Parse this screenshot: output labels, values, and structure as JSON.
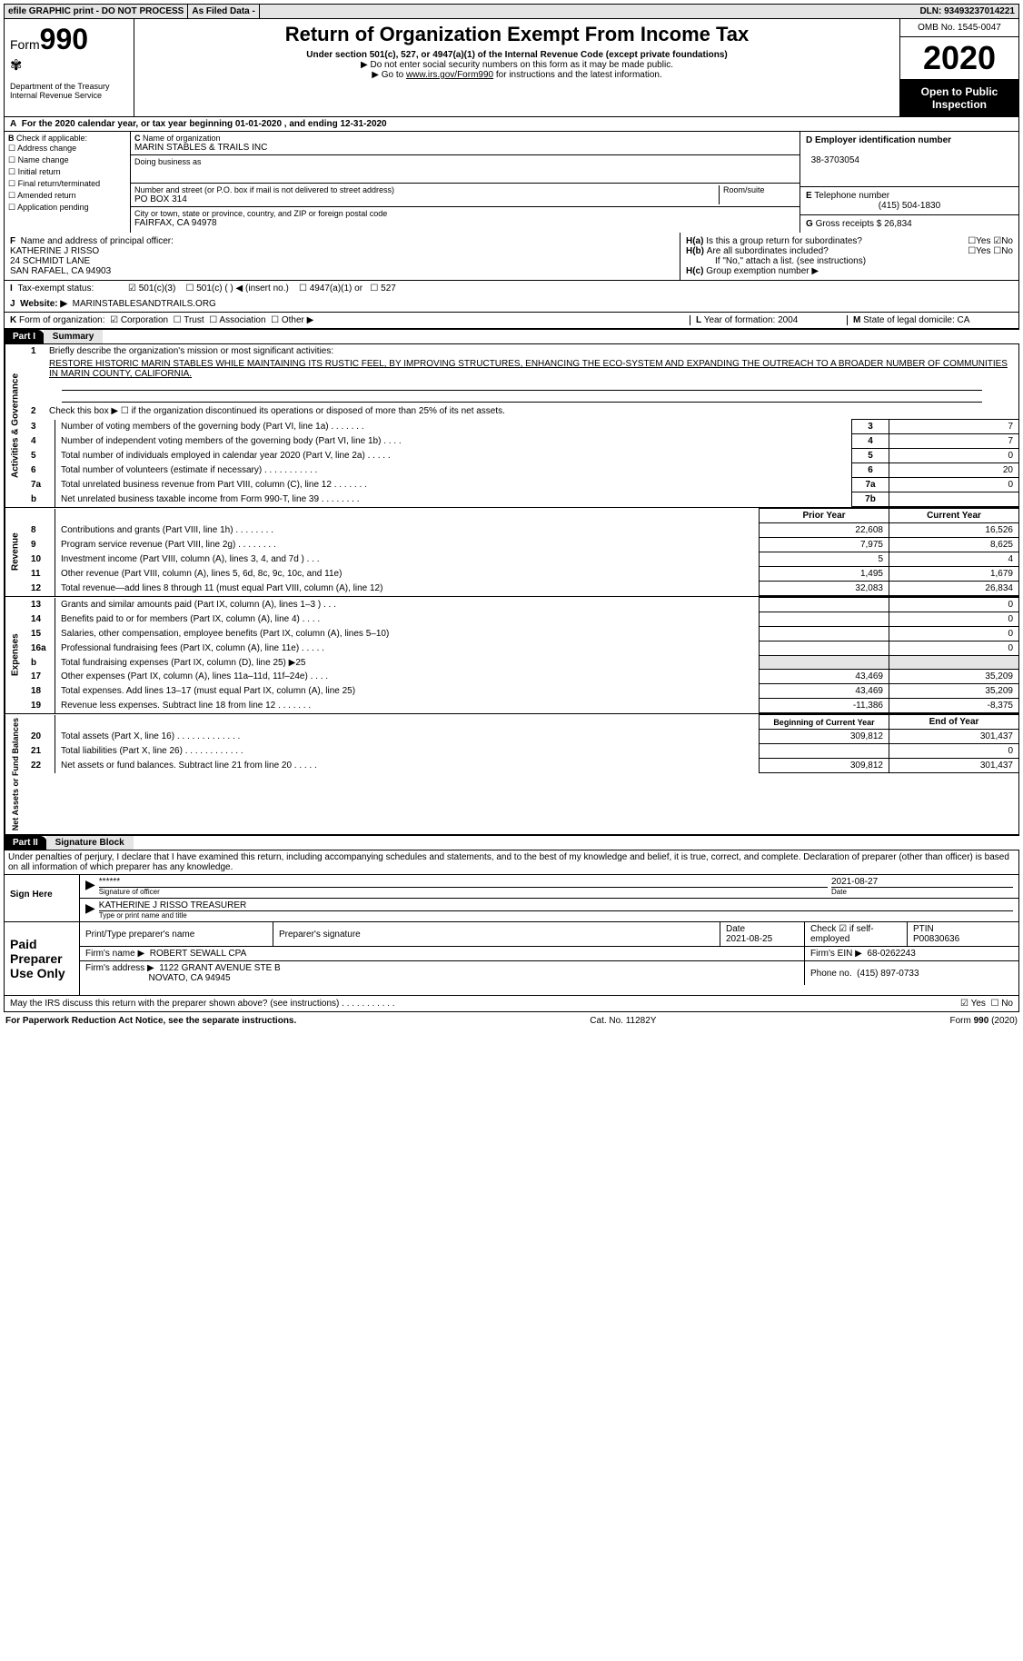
{
  "top": {
    "efile": "efile GRAPHIC print - DO NOT PROCESS",
    "asfiled": "As Filed Data -",
    "dln_label": "DLN:",
    "dln": "93493237014221"
  },
  "header": {
    "form_prefix": "Form",
    "form_num": "990",
    "dept": "Department of the Treasury\nInternal Revenue Service",
    "title": "Return of Organization Exempt From Income Tax",
    "sub": "Under section 501(c), 527, or 4947(a)(1) of the Internal Revenue Code (except private foundations)",
    "line2": "▶ Do not enter social security numbers on this form as it may be made public.",
    "line3_pre": "▶ Go to ",
    "line3_link": "www.irs.gov/Form990",
    "line3_post": " for instructions and the latest information.",
    "omb": "OMB No. 1545-0047",
    "year": "2020",
    "open": "Open to Public Inspection"
  },
  "rowA": "For the 2020 calendar year, or tax year beginning 01-01-2020   , and ending 12-31-2020",
  "B": {
    "label": "Check if applicable:",
    "items": [
      "Address change",
      "Name change",
      "Initial return",
      "Final return/terminated",
      "Amended return",
      "Application pending"
    ]
  },
  "C": {
    "name_lbl": "Name of organization",
    "name": "MARIN STABLES & TRAILS INC",
    "dba_lbl": "Doing business as",
    "addr_lbl": "Number and street (or P.O. box if mail is not delivered to street address)",
    "addr": "PO BOX 314",
    "room_lbl": "Room/suite",
    "city_lbl": "City or town, state or province, country, and ZIP or foreign postal code",
    "city": "FAIRFAX, CA  94978"
  },
  "D": {
    "lbl": "Employer identification number",
    "val": "38-3703054"
  },
  "E": {
    "lbl": "Telephone number",
    "val": "(415) 504-1830"
  },
  "G": {
    "lbl": "Gross receipts $",
    "val": "26,834"
  },
  "F": {
    "lbl": "Name and address of principal officer:",
    "l1": "KATHERINE J RISSO",
    "l2": "24 SCHMIDT LANE",
    "l3": "SAN RAFAEL, CA  94903"
  },
  "H": {
    "a": "Is this a group return for subordinates?",
    "b": "Are all subordinates included?",
    "bnote": "If \"No,\" attach a list. (see instructions)",
    "c": "Group exemption number ▶"
  },
  "I": {
    "lbl": "Tax-exempt status:",
    "o1": "501(c)(3)",
    "o2": "501(c) (   ) ◀ (insert no.)",
    "o3": "4947(a)(1) or",
    "o4": "527"
  },
  "J": {
    "lbl": "Website: ▶",
    "val": "MARINSTABLESANDTRAILS.ORG"
  },
  "K": {
    "lbl": "Form of organization:",
    "o1": "Corporation",
    "o2": "Trust",
    "o3": "Association",
    "o4": "Other ▶"
  },
  "L": {
    "lbl": "Year of formation:",
    "val": "2004"
  },
  "M": {
    "lbl": "State of legal domicile:",
    "val": "CA"
  },
  "part1_label": "Part I",
  "part1_title": "Summary",
  "summary": {
    "l1": "Briefly describe the organization's mission or most significant activities:",
    "mission": "RESTORE HISTORIC MARIN STABLES WHILE MAINTAINING ITS RUSTIC FEEL, BY IMPROVING STRUCTURES, ENHANCING THE ECO-SYSTEM AND EXPANDING THE OUTREACH TO A BROADER NUMBER OF COMMUNITIES IN MARIN COUNTY, CALIFORNIA.",
    "l2": "Check this box ▶ ☐ if the organization discontinued its operations or disposed of more than 25% of its net assets.",
    "rows_ag": [
      {
        "n": "3",
        "t": "Number of voting members of the governing body (Part VI, line 1a)   .   .   .   .   .   .   .",
        "k": "3",
        "v": "7"
      },
      {
        "n": "4",
        "t": "Number of independent voting members of the governing body (Part VI, line 1b)   .   .   .   .",
        "k": "4",
        "v": "7"
      },
      {
        "n": "5",
        "t": "Total number of individuals employed in calendar year 2020 (Part V, line 2a)   .   .   .   .   .",
        "k": "5",
        "v": "0"
      },
      {
        "n": "6",
        "t": "Total number of volunteers (estimate if necessary)   .   .   .   .   .   .   .   .   .   .   .",
        "k": "6",
        "v": "20"
      },
      {
        "n": "7a",
        "t": "Total unrelated business revenue from Part VIII, column (C), line 12   .   .   .   .   .   .   .",
        "k": "7a",
        "v": "0"
      },
      {
        "n": "b",
        "t": "Net unrelated business taxable income from Form 990-T, line 39   .   .   .   .   .   .   .   .",
        "k": "7b",
        "v": ""
      }
    ],
    "col_prior": "Prior Year",
    "col_current": "Current Year",
    "revenue": [
      {
        "n": "8",
        "t": "Contributions and grants (Part VIII, line 1h)   .   .   .   .   .   .   .   .",
        "p": "22,608",
        "c": "16,526"
      },
      {
        "n": "9",
        "t": "Program service revenue (Part VIII, line 2g)   .   .   .   .   .   .   .   .",
        "p": "7,975",
        "c": "8,625"
      },
      {
        "n": "10",
        "t": "Investment income (Part VIII, column (A), lines 3, 4, and 7d )   .   .   .",
        "p": "5",
        "c": "4"
      },
      {
        "n": "11",
        "t": "Other revenue (Part VIII, column (A), lines 5, 6d, 8c, 9c, 10c, and 11e)",
        "p": "1,495",
        "c": "1,679"
      },
      {
        "n": "12",
        "t": "Total revenue—add lines 8 through 11 (must equal Part VIII, column (A), line 12)",
        "p": "32,083",
        "c": "26,834"
      }
    ],
    "expenses": [
      {
        "n": "13",
        "t": "Grants and similar amounts paid (Part IX, column (A), lines 1–3 )   .   .   .",
        "p": "",
        "c": "0"
      },
      {
        "n": "14",
        "t": "Benefits paid to or for members (Part IX, column (A), line 4)   .   .   .   .",
        "p": "",
        "c": "0"
      },
      {
        "n": "15",
        "t": "Salaries, other compensation, employee benefits (Part IX, column (A), lines 5–10)",
        "p": "",
        "c": "0"
      },
      {
        "n": "16a",
        "t": "Professional fundraising fees (Part IX, column (A), line 11e)   .   .   .   .   .",
        "p": "",
        "c": "0"
      },
      {
        "n": "b",
        "t": "Total fundraising expenses (Part IX, column (D), line 25) ▶25",
        "p": "SHADE",
        "c": "SHADE"
      },
      {
        "n": "17",
        "t": "Other expenses (Part IX, column (A), lines 11a–11d, 11f–24e)   .   .   .   .",
        "p": "43,469",
        "c": "35,209"
      },
      {
        "n": "18",
        "t": "Total expenses. Add lines 13–17 (must equal Part IX, column (A), line 25)",
        "p": "43,469",
        "c": "35,209"
      },
      {
        "n": "19",
        "t": "Revenue less expenses. Subtract line 18 from line 12   .   .   .   .   .   .   .",
        "p": "-11,386",
        "c": "-8,375"
      }
    ],
    "col_begin": "Beginning of Current Year",
    "col_end": "End of Year",
    "netassets": [
      {
        "n": "20",
        "t": "Total assets (Part X, line 16)   .   .   .   .   .   .   .   .   .   .   .   .   .",
        "p": "309,812",
        "c": "301,437"
      },
      {
        "n": "21",
        "t": "Total liabilities (Part X, line 26)   .   .   .   .   .   .   .   .   .   .   .   .",
        "p": "",
        "c": "0"
      },
      {
        "n": "22",
        "t": "Net assets or fund balances. Subtract line 21 from line 20   .   .   .   .   .",
        "p": "309,812",
        "c": "301,437"
      }
    ]
  },
  "part2_label": "Part II",
  "part2_title": "Signature Block",
  "perjury": "Under penalties of perjury, I declare that I have examined this return, including accompanying schedules and statements, and to the best of my knowledge and belief, it is true, correct, and complete. Declaration of preparer (other than officer) is based on all information of which preparer has any knowledge.",
  "sign": {
    "here": "Sign Here",
    "stars": "******",
    "sig_lbl": "Signature of officer",
    "date": "2021-08-27",
    "date_lbl": "Date",
    "name": "KATHERINE J RISSO TREASURER",
    "name_lbl": "Type or print name and title"
  },
  "preparer": {
    "label": "Paid Preparer Use Only",
    "col1": "Print/Type preparer's name",
    "col2": "Preparer's signature",
    "col3_lbl": "Date",
    "col3": "2021-08-25",
    "col4": "Check ☑ if self-employed",
    "col5_lbl": "PTIN",
    "col5": "P00830636",
    "firm_lbl": "Firm's name    ▶",
    "firm": "ROBERT SEWALL CPA",
    "ein_lbl": "Firm's EIN ▶",
    "ein": "68-0262243",
    "addr_lbl": "Firm's address ▶",
    "addr1": "1122 GRANT AVENUE STE B",
    "addr2": "NOVATO, CA  94945",
    "phone_lbl": "Phone no.",
    "phone": "(415) 897-0733"
  },
  "discuss": "May the IRS discuss this return with the preparer shown above? (see instructions)   .   .   .   .   .   .   .   .   .   .   .",
  "footer": {
    "left": "For Paperwork Reduction Act Notice, see the separate instructions.",
    "mid": "Cat. No. 11282Y",
    "right_pre": "Form ",
    "right_b": "990",
    "right_post": " (2020)"
  },
  "labels": {
    "vert_ag": "Activities & Governance",
    "vert_rev": "Revenue",
    "vert_exp": "Expenses",
    "vert_na": "Net Assets or Fund Balances"
  }
}
